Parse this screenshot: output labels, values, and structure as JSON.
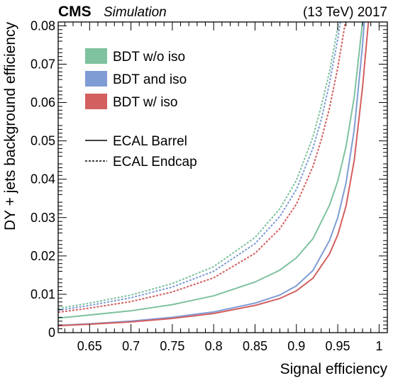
{
  "header": {
    "experiment": "CMS",
    "tag": "Simulation",
    "energy_year": "(13 TeV) 2017"
  },
  "chart_data": {
    "type": "line",
    "xlabel": "Signal efficiency",
    "ylabel": "DY + jets background efficiency",
    "xlim": [
      0.612,
      1.01
    ],
    "ylim": [
      0,
      0.081
    ],
    "xticks": [
      "0.65",
      "0.7",
      "0.75",
      "0.8",
      "0.85",
      "0.9",
      "0.95",
      "1"
    ],
    "yticks": [
      "0",
      "0.01",
      "0.02",
      "0.03",
      "0.04",
      "0.05",
      "0.06",
      "0.07",
      "0.08"
    ],
    "grid": false,
    "legend_placement": "top-left",
    "legend": {
      "colors": [
        {
          "name": "BDT w/o iso",
          "color": "#7fc29f"
        },
        {
          "name": "BDT and iso",
          "color": "#7f9cd5"
        },
        {
          "name": "BDT w/ iso",
          "color": "#d35f5f"
        }
      ],
      "styles": [
        {
          "name": "ECAL Barrel",
          "dash": "solid"
        },
        {
          "name": "ECAL Endcap",
          "dash": "dotted"
        }
      ]
    },
    "series": [
      {
        "method": "BDT w/o iso",
        "region": "ECAL Barrel",
        "color": "#7fc29f",
        "dash": "solid",
        "x": [
          0.612,
          0.65,
          0.7,
          0.75,
          0.8,
          0.85,
          0.88,
          0.9,
          0.92,
          0.94,
          0.95,
          0.96,
          0.97,
          0.98,
          0.985
        ],
        "y": [
          0.0038,
          0.0046,
          0.0057,
          0.0073,
          0.0096,
          0.0132,
          0.0163,
          0.0195,
          0.0245,
          0.0332,
          0.0395,
          0.0485,
          0.0615,
          0.081,
          0.095
        ]
      },
      {
        "method": "BDT and iso",
        "region": "ECAL Barrel",
        "color": "#7f9cd5",
        "dash": "solid",
        "x": [
          0.612,
          0.65,
          0.7,
          0.75,
          0.8,
          0.85,
          0.88,
          0.9,
          0.92,
          0.94,
          0.95,
          0.96,
          0.97,
          0.98,
          0.985
        ],
        "y": [
          0.0019,
          0.0023,
          0.003,
          0.004,
          0.0054,
          0.0077,
          0.0098,
          0.0122,
          0.0162,
          0.024,
          0.03,
          0.039,
          0.053,
          0.075,
          0.089
        ]
      },
      {
        "method": "BDT w/ iso",
        "region": "ECAL Barrel",
        "color": "#d35f5f",
        "dash": "solid",
        "x": [
          0.612,
          0.65,
          0.7,
          0.75,
          0.8,
          0.85,
          0.88,
          0.9,
          0.92,
          0.94,
          0.95,
          0.96,
          0.97,
          0.98,
          0.99
        ],
        "y": [
          0.0018,
          0.0022,
          0.0028,
          0.0037,
          0.005,
          0.0071,
          0.0089,
          0.0109,
          0.0142,
          0.0205,
          0.0255,
          0.033,
          0.045,
          0.064,
          0.088
        ]
      },
      {
        "method": "BDT w/o iso",
        "region": "ECAL Endcap",
        "color": "#7fc29f",
        "dash": "dotted",
        "x": [
          0.612,
          0.65,
          0.7,
          0.75,
          0.8,
          0.85,
          0.88,
          0.9,
          0.92,
          0.93,
          0.94,
          0.95,
          0.96
        ],
        "y": [
          0.0063,
          0.0077,
          0.0098,
          0.0128,
          0.0172,
          0.0248,
          0.0323,
          0.0397,
          0.051,
          0.059,
          0.068,
          0.0795,
          0.093
        ]
      },
      {
        "method": "BDT and iso",
        "region": "ECAL Endcap",
        "color": "#7f9cd5",
        "dash": "dotted",
        "x": [
          0.612,
          0.65,
          0.7,
          0.75,
          0.8,
          0.85,
          0.88,
          0.9,
          0.92,
          0.93,
          0.94,
          0.95,
          0.96
        ],
        "y": [
          0.0058,
          0.0071,
          0.0091,
          0.0119,
          0.016,
          0.0232,
          0.0303,
          0.0373,
          0.0481,
          0.0555,
          0.065,
          0.0765,
          0.09
        ]
      },
      {
        "method": "BDT w/ iso",
        "region": "ECAL Endcap",
        "color": "#d35f5f",
        "dash": "dotted",
        "x": [
          0.612,
          0.65,
          0.7,
          0.75,
          0.8,
          0.85,
          0.88,
          0.9,
          0.92,
          0.93,
          0.94,
          0.95,
          0.96,
          0.965
        ],
        "y": [
          0.0053,
          0.0064,
          0.0081,
          0.0106,
          0.0143,
          0.0207,
          0.0271,
          0.0335,
          0.0433,
          0.0502,
          0.0585,
          0.069,
          0.082,
          0.09
        ]
      }
    ]
  }
}
